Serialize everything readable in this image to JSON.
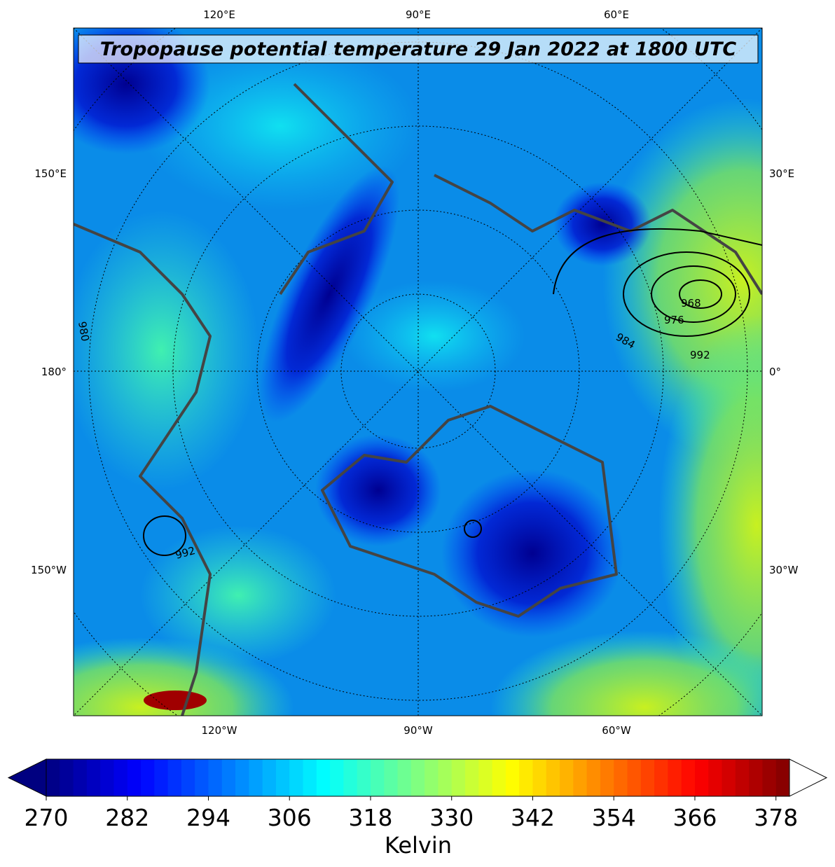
{
  "map": {
    "title": "Tropopause potential temperature 29 Jan 2022 at 1800 UTC",
    "lon_labels_top": [
      "120°E",
      "90°E",
      "60°E"
    ],
    "lon_labels_bottom": [
      "120°W",
      "90°W",
      "60°W"
    ],
    "lon_labels_left": [
      "150°E",
      "180°",
      "150°W"
    ],
    "lon_labels_right": [
      "30°E",
      "0°",
      "30°W"
    ],
    "contour_labels": [
      "980",
      "968",
      "976",
      "984",
      "992",
      "992"
    ]
  },
  "colorbar": {
    "label": "Kelvin",
    "colormap": "jet",
    "lim": [
      270,
      380
    ],
    "ticks": [
      270,
      282,
      294,
      306,
      318,
      330,
      342,
      354,
      366,
      378
    ]
  }
}
